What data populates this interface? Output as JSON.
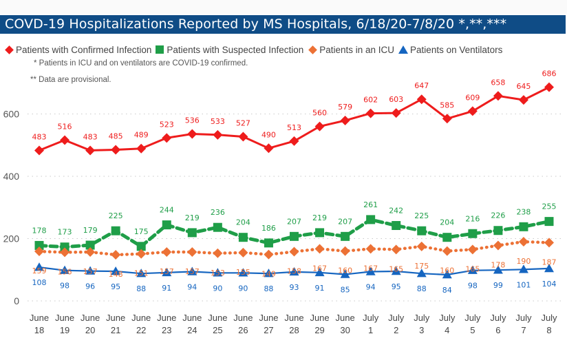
{
  "title": "COVD-19 Hospitalizations Reported by MS Hospitals, 6/18/20-7/8/20 *,**,***",
  "notes": [
    "* Patients in ICU and on ventilators are COVID-19 confirmed.",
    "** Data are provisional."
  ],
  "legend": [
    {
      "label": "Patients with Confirmed Infection",
      "icon": "diamond-icon",
      "color": "#ee1c1c"
    },
    {
      "label": "Patients with Suspected Infection",
      "icon": "square-icon",
      "color": "#1f9e48"
    },
    {
      "label": "Patients in an ICU",
      "icon": "diamond-icon",
      "color": "#ec7135"
    },
    {
      "label": "Patients on Ventilators",
      "icon": "triangle-icon",
      "color": "#1565c0"
    }
  ],
  "chart_data": {
    "type": "line",
    "title": "COVD-19 Hospitalizations Reported by MS Hospitals, 6/18/20-7/8/20 *,**,***",
    "xlabel": "",
    "ylabel": "",
    "ylim": [
      0,
      700
    ],
    "yticks": [
      0,
      200,
      400,
      600
    ],
    "grid": true,
    "legend_position": "top-left",
    "categories": [
      [
        "June",
        "18"
      ],
      [
        "June",
        "19"
      ],
      [
        "June",
        "20"
      ],
      [
        "June",
        "21"
      ],
      [
        "June",
        "22"
      ],
      [
        "June",
        "23"
      ],
      [
        "June",
        "24"
      ],
      [
        "June",
        "25"
      ],
      [
        "June",
        "26"
      ],
      [
        "June",
        "27"
      ],
      [
        "June",
        "28"
      ],
      [
        "June",
        "29"
      ],
      [
        "June",
        "30"
      ],
      [
        "July",
        "1"
      ],
      [
        "July",
        "2"
      ],
      [
        "July",
        "3"
      ],
      [
        "July",
        "4"
      ],
      [
        "July",
        "5"
      ],
      [
        "July",
        "6"
      ],
      [
        "July",
        "7"
      ],
      [
        "July",
        "8"
      ]
    ],
    "series": [
      {
        "name": "Patients with Confirmed Infection",
        "color": "#ee1c1c",
        "marker": "diamond",
        "line": "solid",
        "values": [
          483,
          516,
          483,
          485,
          489,
          523,
          536,
          533,
          527,
          490,
          513,
          560,
          579,
          602,
          603,
          647,
          585,
          609,
          658,
          645,
          686
        ]
      },
      {
        "name": "Patients with Suspected Infection",
        "color": "#1f9e48",
        "marker": "square",
        "line": "dashed",
        "values": [
          178,
          173,
          179,
          225,
          175,
          244,
          219,
          236,
          204,
          186,
          207,
          219,
          207,
          261,
          242,
          225,
          204,
          216,
          226,
          238,
          255
        ]
      },
      {
        "name": "Patients in an ICU",
        "color": "#ec7135",
        "marker": "diamond",
        "line": "dotted",
        "values": [
          159,
          156,
          157,
          148,
          151,
          157,
          157,
          153,
          155,
          149,
          158,
          167,
          160,
          167,
          165,
          175,
          160,
          165,
          178,
          190,
          187
        ]
      },
      {
        "name": "Patients on Ventilators",
        "color": "#1565c0",
        "marker": "triangle",
        "line": "solid",
        "values": [
          108,
          98,
          96,
          95,
          88,
          91,
          94,
          90,
          90,
          88,
          93,
          91,
          85,
          94,
          95,
          88,
          84,
          98,
          99,
          101,
          104
        ]
      }
    ]
  }
}
